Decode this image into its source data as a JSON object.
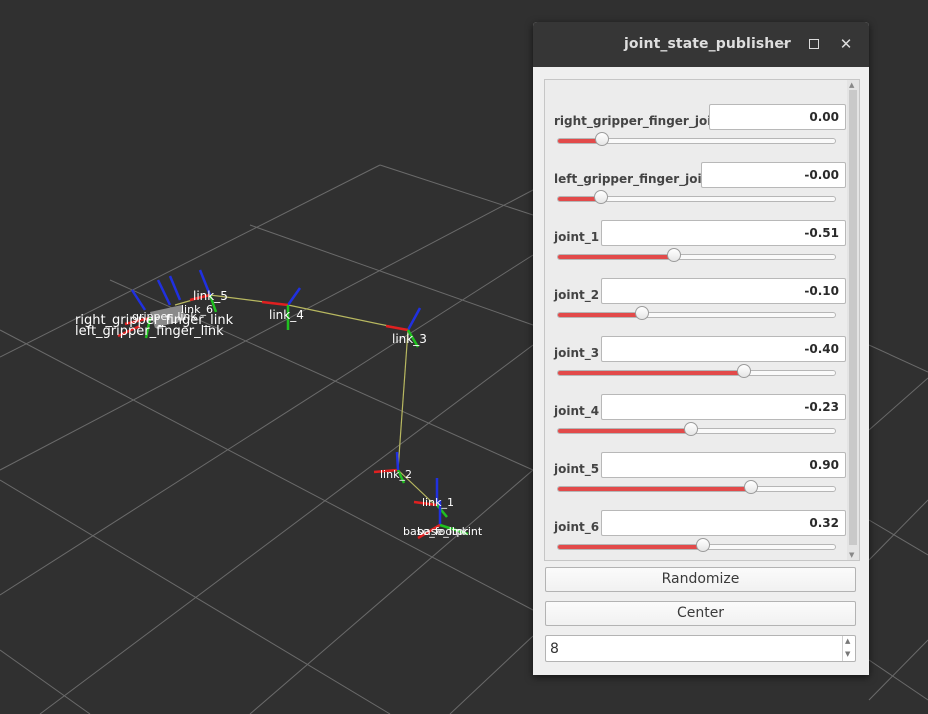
{
  "window": {
    "title": "joint_state_publisher",
    "minimize_icon": "minimize-icon",
    "maximize_icon": "maximize-icon",
    "close_icon": "close-icon"
  },
  "joints": [
    {
      "name": "right_gripper_finger_joint",
      "value": "0.00",
      "slider_fraction": 0.16
    },
    {
      "name": "left_gripper_finger_joint",
      "value": "-0.00",
      "slider_fraction": 0.155
    },
    {
      "name": "joint_1",
      "value": "-0.51",
      "slider_fraction": 0.42
    },
    {
      "name": "joint_2",
      "value": "-0.10",
      "slider_fraction": 0.305
    },
    {
      "name": "joint_3",
      "value": "-0.40",
      "slider_fraction": 0.67
    },
    {
      "name": "joint_4",
      "value": "-0.23",
      "slider_fraction": 0.48
    },
    {
      "name": "joint_5",
      "value": "0.90",
      "slider_fraction": 0.695
    },
    {
      "name": "joint_6",
      "value": "0.32",
      "slider_fraction": 0.525
    }
  ],
  "buttons": {
    "randomize": "Randomize",
    "center": "Center"
  },
  "spinbox": {
    "value": "8"
  },
  "scene": {
    "labels": {
      "link_5": "link_5",
      "link_4": "link_4",
      "link_3": "link_3",
      "link_2": "link_2",
      "link_1": "link_1",
      "link_6": "link_6",
      "base": "base_footprint",
      "base_link": "base_link",
      "gripper_link": "gripper_link",
      "right_finger": "right_gripper_finger_link",
      "left_finger": "left_gripper_finger_link"
    },
    "colors": {
      "background": "#303030",
      "grid": "#6a6a6a",
      "x_axis": "#e02020",
      "y_axis": "#20c020",
      "z_axis": "#2030e0",
      "link_line": "#b8b860"
    }
  },
  "colors": {
    "slider_fill": "#e24a4a",
    "titlebar": "#363636"
  }
}
